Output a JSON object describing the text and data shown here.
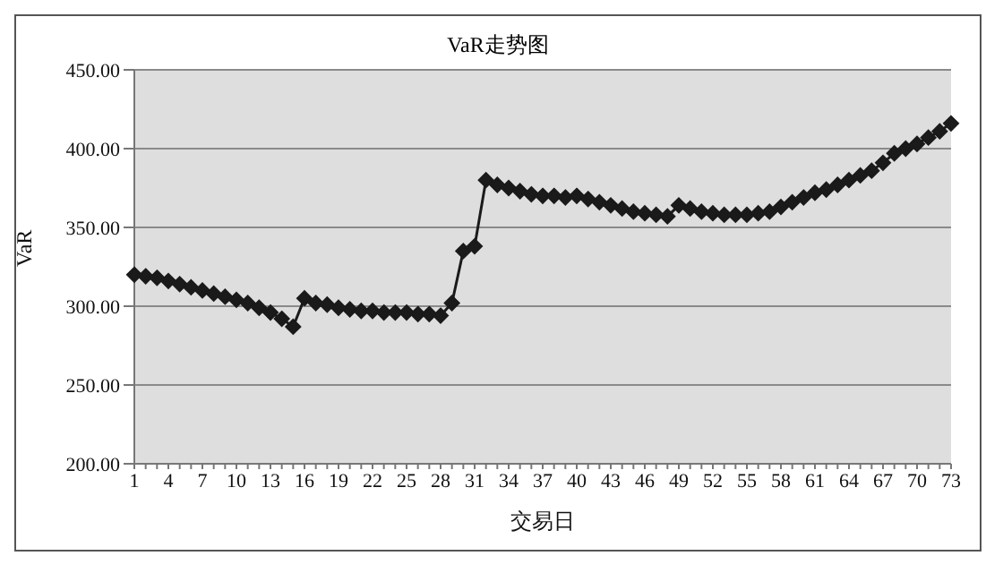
{
  "chart_data": {
    "type": "line",
    "title": "VaR走势图",
    "xlabel": "交易日",
    "ylabel": "VaR",
    "categories": [
      "1",
      null,
      null,
      "4",
      null,
      null,
      "7",
      null,
      null,
      "10",
      null,
      null,
      "13",
      null,
      null,
      "16",
      null,
      null,
      "19",
      null,
      null,
      "22",
      null,
      null,
      "25",
      null,
      null,
      "28",
      null,
      null,
      "31",
      null,
      null,
      "34",
      null,
      null,
      "37",
      null,
      null,
      "40",
      null,
      null,
      "43",
      null,
      null,
      "46",
      null,
      null,
      "49",
      null,
      null,
      "52",
      null,
      null,
      "55",
      null,
      null,
      "58",
      null,
      null,
      "61",
      null,
      null,
      "64",
      null,
      null,
      "67",
      null,
      null,
      "70",
      null,
      null,
      "73"
    ],
    "series": [
      {
        "color": "#1a1a1a",
        "values": [
          320,
          319,
          318,
          316,
          314,
          312,
          310,
          308,
          306,
          304,
          302,
          299,
          296,
          292,
          287,
          305,
          302,
          301,
          299,
          298,
          297,
          297,
          296,
          296,
          296,
          295,
          295,
          294,
          302,
          335,
          338,
          380,
          377,
          375,
          373,
          371,
          370,
          370,
          369,
          370,
          368,
          366,
          364,
          362,
          360,
          359,
          358,
          357,
          364,
          362,
          360,
          359,
          358,
          358,
          358,
          359,
          360,
          363,
          366,
          369,
          372,
          374,
          377,
          380,
          383,
          386,
          391,
          397,
          400,
          403,
          407,
          411,
          416
        ]
      }
    ],
    "ylim": [
      200,
      450
    ],
    "yticks": [
      {
        "value": 200,
        "label": "200.00"
      },
      {
        "value": 250,
        "label": "250.00"
      },
      {
        "value": 300,
        "label": "300.00"
      },
      {
        "value": 350,
        "label": "350.00"
      },
      {
        "value": 400,
        "label": "400.00"
      },
      {
        "value": 450,
        "label": "450.00"
      }
    ],
    "grid": "y",
    "marker": "diamond",
    "line_style": "solid",
    "legend": false
  }
}
